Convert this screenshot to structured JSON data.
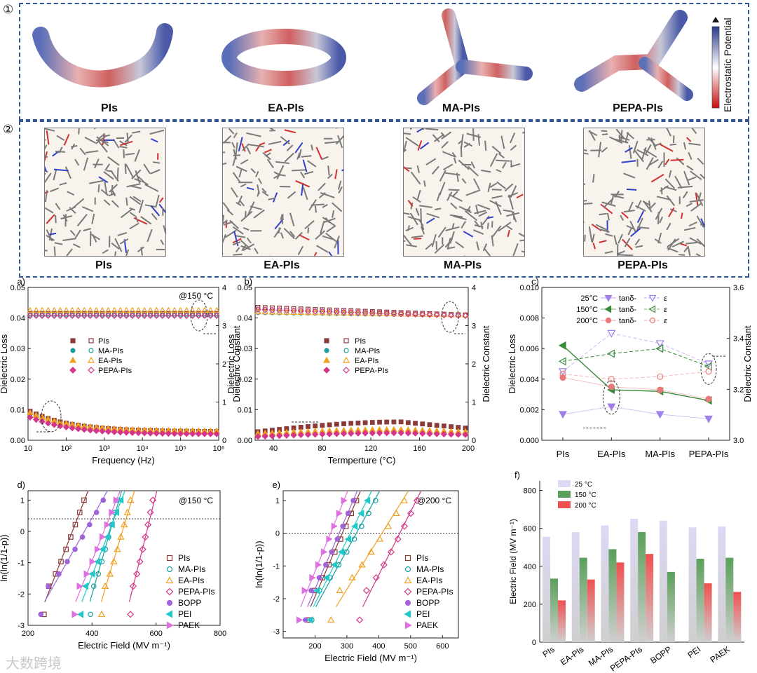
{
  "markers": {
    "row1": "①",
    "row2": "②"
  },
  "molecules": [
    "PIs",
    "EA-PIs",
    "MA-PIs",
    "PEPA-PIs"
  ],
  "colorbar_label": "Electrostatic Potential",
  "watermark": "大数跨境",
  "colors": {
    "PIs": "#8b3a3a",
    "MA-PIs": "#1a9e9e",
    "EA-PIs": "#f0a020",
    "PEPA-PIs": "#d4358a",
    "BOPP": "#a064d8",
    "PEI": "#22c8c8",
    "PAEK": "#e070e0",
    "frame": "#2f5597"
  },
  "chart_data": [
    {
      "id": "a",
      "type": "line",
      "panel": "a)",
      "annotation": "@150 °C",
      "xlabel": "Frequency (Hz)",
      "ylabel": "Dielectric Loss",
      "y2label": "Dielectric Constant",
      "xscale": "log",
      "xlim": [
        10,
        1000000
      ],
      "xticks": [
        "10",
        "10²",
        "10³",
        "10⁴",
        "10⁵",
        "10⁶"
      ],
      "ylim": [
        0,
        0.05
      ],
      "yticks": [
        "0.00",
        "0.01",
        "0.02",
        "0.03",
        "0.04",
        "0.05"
      ],
      "y2lim": [
        0,
        4
      ],
      "y2ticks": [
        "0",
        "1",
        "2",
        "3",
        "4"
      ],
      "legend": [
        "PIs",
        "MA-PIs",
        "EA-PIs",
        "PEPA-PIs"
      ],
      "series": [
        {
          "name": "PIs",
          "loss_start": 0.0095,
          "loss_end": 0.0028,
          "constant": 3.32
        },
        {
          "name": "MA-PIs",
          "loss_start": 0.0085,
          "loss_end": 0.0025,
          "constant": 3.28
        },
        {
          "name": "EA-PIs",
          "loss_start": 0.009,
          "loss_end": 0.003,
          "constant": 3.4
        },
        {
          "name": "PEPA-PIs",
          "loss_start": 0.0075,
          "loss_end": 0.002,
          "constant": 3.26
        }
      ]
    },
    {
      "id": "b",
      "type": "line",
      "panel": "b)",
      "xlabel": "Termperture (°C)",
      "ylabel": "Dielectric Loss",
      "y2label": "Dielectric Constant",
      "xlim": [
        25,
        200
      ],
      "xticks": [
        "40",
        "80",
        "120",
        "160",
        "200"
      ],
      "ylim": [
        0,
        0.05
      ],
      "yticks": [
        "0.00",
        "0.01",
        "0.02",
        "0.03",
        "0.04",
        "0.05"
      ],
      "y2lim": [
        0,
        4
      ],
      "y2ticks": [
        "0",
        "1",
        "2",
        "3",
        "4"
      ],
      "legend": [
        "PIs",
        "MA-PIs",
        "EA-PIs",
        "PEPA-PIs"
      ],
      "series": [
        {
          "name": "PIs",
          "loss_start": 0.0028,
          "loss_peak": 0.006,
          "loss_end": 0.004,
          "constant_start": 3.48,
          "constant_end": 3.28
        },
        {
          "name": "MA-PIs",
          "loss_start": 0.0018,
          "loss_peak": 0.003,
          "loss_end": 0.0022,
          "constant_start": 3.34,
          "constant_end": 3.27
        },
        {
          "name": "EA-PIs",
          "loss_start": 0.0022,
          "loss_peak": 0.0035,
          "loss_end": 0.0028,
          "constant_start": 3.36,
          "constant_end": 3.28
        },
        {
          "name": "PEPA-PIs",
          "loss_start": 0.0012,
          "loss_peak": 0.0024,
          "loss_end": 0.0018,
          "constant_start": 3.42,
          "constant_end": 3.26
        }
      ]
    },
    {
      "id": "c",
      "type": "line",
      "panel": "c)",
      "ylabel": "Dielectric Loss",
      "y2label": "Dielectric Constant",
      "categories": [
        "PIs",
        "EA-PIs",
        "MA-PIs",
        "PEPA-PIs"
      ],
      "ylim": [
        0,
        0.01
      ],
      "yticks": [
        "0.000",
        "0.002",
        "0.004",
        "0.006",
        "0.008",
        "0.010"
      ],
      "y2lim": [
        3.0,
        3.6
      ],
      "y2ticks": [
        "3.0",
        "3.2",
        "3.4",
        "3.6"
      ],
      "legend": [
        {
          "temp": "25°C",
          "tan": "tanδ-",
          "eps": "ε"
        },
        {
          "temp": "150°C",
          "tan": "tanδ-",
          "eps": "ε"
        },
        {
          "temp": "200°C",
          "tan": "tanδ-",
          "eps": "ε"
        }
      ],
      "series": [
        {
          "name": "25°C",
          "tan_delta": [
            0.0017,
            0.0022,
            0.0017,
            0.0014
          ],
          "epsilon": [
            3.27,
            3.42,
            3.38,
            3.3
          ]
        },
        {
          "name": "150°C",
          "tan_delta": [
            0.0062,
            0.0033,
            0.0032,
            0.0026
          ],
          "epsilon": [
            3.31,
            3.34,
            3.36,
            3.29
          ]
        },
        {
          "name": "200°C",
          "tan_delta": [
            0.0041,
            0.0035,
            0.0033,
            0.0027
          ],
          "epsilon": [
            3.26,
            3.24,
            3.25,
            3.27
          ]
        }
      ]
    },
    {
      "id": "d",
      "type": "scatter",
      "panel": "d)",
      "annotation": "@150 °C",
      "xlabel": "Electric Field (MV m⁻¹)",
      "ylabel": "ln(ln(1/1-p))",
      "xlim": [
        200,
        800
      ],
      "xticks": [
        "200",
        "400",
        "600",
        "800"
      ],
      "ylim": [
        -3,
        1.3
      ],
      "yticks": [
        "-3",
        "-2",
        "-1",
        "0",
        "1"
      ],
      "ref_line": 0.4,
      "legend": [
        "PIs",
        "MA-PIs",
        "EA-PIs",
        "PEPA-PIs",
        "BOPP",
        "PEI",
        "PAEK"
      ],
      "series": [
        {
          "name": "PIs",
          "x_min": 250,
          "x_max": 375
        },
        {
          "name": "MA-PIs",
          "x_min": 395,
          "x_max": 480
        },
        {
          "name": "EA-PIs",
          "x_min": 430,
          "x_max": 520
        },
        {
          "name": "PEPA-PIs",
          "x_min": 520,
          "x_max": 590
        },
        {
          "name": "BOPP",
          "x_min": 240,
          "x_max": 435
        },
        {
          "name": "PEI",
          "x_min": 365,
          "x_max": 490
        },
        {
          "name": "PAEK",
          "x_min": 345,
          "x_max": 475
        }
      ]
    },
    {
      "id": "e",
      "type": "scatter",
      "panel": "e)",
      "annotation": "@200 °C",
      "xlabel": "Electric Field (MV m⁻¹)",
      "ylabel": "ln(ln(1/1-p))",
      "xlim": [
        100,
        650
      ],
      "xticks": [
        "200",
        "300",
        "400",
        "500",
        "600"
      ],
      "ylim": [
        -3.2,
        1.3
      ],
      "yticks": [
        "-3",
        "-2",
        "-1",
        "0",
        "1"
      ],
      "ref_line": 0.0,
      "legend": [
        "PIs",
        "MA-PIs",
        "EA-PIs",
        "PEPA-PIs",
        "BOPP",
        "PEI",
        "PAEK"
      ],
      "series": [
        {
          "name": "PIs",
          "x_min": 180,
          "x_max": 330
        },
        {
          "name": "MA-PIs",
          "x_min": 190,
          "x_max": 390
        },
        {
          "name": "EA-PIs",
          "x_min": 250,
          "x_max": 480
        },
        {
          "name": "PEPA-PIs",
          "x_min": 340,
          "x_max": 520
        },
        {
          "name": "BOPP",
          "x_min": 170,
          "x_max": 320
        },
        {
          "name": "PEI",
          "x_min": 185,
          "x_max": 365
        },
        {
          "name": "PAEK",
          "x_min": 150,
          "x_max": 290
        }
      ]
    },
    {
      "id": "f",
      "type": "bar",
      "panel": "f)",
      "ylabel": "Electric Field (MV m⁻¹)",
      "ylim": [
        0,
        850
      ],
      "yticks": [
        "0",
        "200",
        "400",
        "600",
        "800"
      ],
      "categories": [
        "PIs",
        "EA-PIs",
        "MA-PIs",
        "PEPA-PIs",
        "BOPP",
        "PEI",
        "PAEK"
      ],
      "series": [
        {
          "name": "25 °C",
          "values": [
            555,
            580,
            615,
            650,
            640,
            605,
            610
          ],
          "color": "#ded8f4"
        },
        {
          "name": "150 °C",
          "values": [
            335,
            445,
            490,
            580,
            370,
            440,
            445
          ],
          "color": "#5aa05a"
        },
        {
          "name": "200 °C",
          "values": [
            220,
            330,
            420,
            465,
            null,
            310,
            265
          ],
          "color": "#f05050"
        }
      ]
    }
  ]
}
